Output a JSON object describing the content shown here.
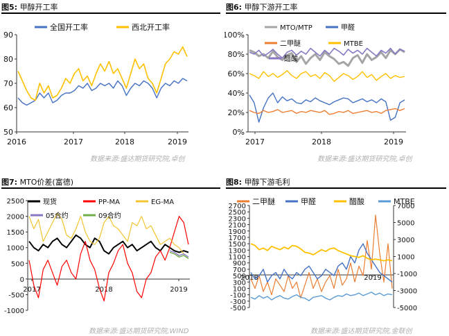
{
  "panels": {
    "p1": {
      "figno": "图5:",
      "title": "甲醇开工率",
      "source": "数据来源:盛达期货研究院,卓创"
    },
    "p2": {
      "figno": "图6:",
      "title": "甲醇下游开工率",
      "source": "数据来源:盛达期货研究院,卓创"
    },
    "p3": {
      "figno": "图7:",
      "title": "MTO价差(富德)",
      "source": "数据来源:盛达期货研究院,WIND"
    },
    "p4": {
      "figno": "图8:",
      "title": "甲醇下游毛利",
      "source": "数据来源:盛达期货研究院,金联创"
    }
  },
  "colors": {
    "blue": "#4472c4",
    "gold": "#ffc000",
    "gray": "#a5a5a5",
    "orange": "#ed7d31",
    "black": "#000000",
    "red": "#ff0000",
    "yellow": "#f4c430",
    "purple": "#8878c3",
    "green": "#70ad47",
    "ltblue": "#5b9bd5",
    "darkgold": "#c49a00"
  },
  "chart_data": [
    {
      "id": "p1",
      "type": "line",
      "x_ticks": [
        "2016",
        "2017",
        "2018",
        "2019"
      ],
      "ylim": [
        50,
        90
      ],
      "y_ticks": [
        "50",
        "60",
        "70",
        "80",
        "90"
      ],
      "legend_position": "top",
      "series": [
        {
          "name": "全国开工率",
          "color": "blue",
          "values": [
            64,
            62,
            61,
            62,
            63,
            66,
            64,
            66,
            62,
            63,
            65,
            66,
            66,
            67,
            69,
            68,
            70,
            67,
            68,
            70,
            69,
            70,
            68,
            71,
            69,
            65,
            68,
            70,
            69,
            71,
            70,
            68,
            64,
            68,
            70,
            69,
            71,
            70,
            72,
            71
          ]
        },
        {
          "name": "西北开工率",
          "color": "gold",
          "values": [
            75,
            71,
            67,
            64,
            63,
            70,
            66,
            69,
            64,
            65,
            68,
            72,
            70,
            74,
            76,
            71,
            73,
            69,
            74,
            78,
            75,
            79,
            74,
            76,
            72,
            68,
            74,
            80,
            76,
            78,
            72,
            70,
            66,
            72,
            78,
            80,
            83,
            82,
            85,
            81
          ]
        }
      ]
    },
    {
      "id": "p2",
      "type": "line",
      "x_ticks": [
        "2017",
        "2018",
        "2019"
      ],
      "ylim": [
        0,
        100
      ],
      "y_ticks": [
        "0%",
        "20%",
        "40%",
        "60%",
        "80%",
        "100%"
      ],
      "legend_position": "top",
      "series": [
        {
          "name": "MTO/MTP",
          "color": "gray",
          "values": [
            84,
            82,
            78,
            80,
            76,
            83,
            77,
            74,
            79,
            81,
            72,
            78,
            70,
            76,
            80,
            74,
            82,
            78,
            75,
            70,
            72,
            68,
            76,
            79,
            71,
            80,
            74,
            77,
            82,
            76,
            84,
            80,
            85,
            82
          ]
        },
        {
          "name": "甲醛",
          "color": "blue",
          "values": [
            38,
            30,
            10,
            25,
            35,
            40,
            30,
            36,
            32,
            34,
            30,
            29,
            33,
            31,
            35,
            32,
            30,
            28,
            31,
            33,
            35,
            34,
            30,
            32,
            34,
            31,
            33,
            30,
            34,
            31,
            12,
            15,
            30,
            33
          ]
        },
        {
          "name": "二甲醚",
          "color": "orange",
          "values": [
            22,
            20,
            19,
            22,
            20,
            21,
            23,
            20,
            21,
            22,
            19,
            21,
            20,
            22,
            21,
            20,
            22,
            18,
            19,
            21,
            20,
            22,
            19,
            20,
            21,
            22,
            20,
            21,
            19,
            22,
            23,
            24,
            22,
            24
          ]
        },
        {
          "name": "MTBE",
          "color": "gold",
          "values": [
            60,
            58,
            55,
            62,
            57,
            60,
            56,
            59,
            63,
            58,
            55,
            60,
            62,
            57,
            59,
            55,
            61,
            58,
            52,
            56,
            60,
            58,
            54,
            57,
            62,
            56,
            59,
            53,
            57,
            60,
            55,
            58,
            56,
            57
          ]
        },
        {
          "name": "醋酸",
          "color": "purple",
          "values": [
            82,
            80,
            84,
            78,
            81,
            85,
            80,
            76,
            82,
            84,
            79,
            83,
            80,
            86,
            82,
            78,
            84,
            80,
            86,
            83,
            79,
            85,
            81,
            84,
            80,
            86,
            82,
            78,
            84,
            81,
            86,
            80,
            85,
            83
          ]
        }
      ]
    },
    {
      "id": "p3",
      "type": "line",
      "x_ticks": [
        "2017",
        "2018",
        "2019"
      ],
      "ylim": [
        -1000,
        2500
      ],
      "y_ticks": [
        "-1000",
        "-500",
        "0",
        "500",
        "1000",
        "1500",
        "2000",
        "2500"
      ],
      "legend_position": "top",
      "series": [
        {
          "name": "现货",
          "color": "black",
          "values": [
            1200,
            1000,
            900,
            1100,
            1000,
            1200,
            1300,
            1100,
            1000,
            1200,
            1400,
            1300,
            1100,
            1000,
            1300,
            1200,
            900,
            800,
            1000,
            1100,
            1200,
            1000,
            1100,
            900,
            1000,
            1100,
            1200,
            1000,
            900,
            1100,
            1000,
            900,
            850,
            900,
            850
          ]
        },
        {
          "name": "PP-MA",
          "color": "red",
          "values": [
            600,
            -200,
            -600,
            300,
            600,
            200,
            -200,
            400,
            600,
            200,
            0,
            800,
            1200,
            600,
            300,
            -300,
            -700,
            200,
            500,
            900,
            1100,
            500,
            200,
            -400,
            -600,
            0,
            200,
            700,
            900,
            600,
            1000,
            1500,
            2000,
            1800,
            1100
          ]
        },
        {
          "name": "EG-MA",
          "color": "yellow",
          "values": [
            2000,
            1600,
            1900,
            1200,
            1500,
            1800,
            2100,
            1900,
            1400,
            1300,
            1600,
            2000,
            1500,
            1200,
            1100,
            1300,
            1800,
            2000,
            1700,
            1600,
            1400,
            1200,
            1800,
            1700,
            2000,
            1600,
            1700,
            1400,
            1100,
            1200,
            1300,
            1100,
            1000,
            800,
            700
          ]
        },
        {
          "name": "05合约",
          "color": "purple",
          "values": [
            null,
            null,
            null,
            null,
            null,
            null,
            null,
            null,
            null,
            null,
            null,
            null,
            null,
            null,
            null,
            null,
            null,
            null,
            null,
            null,
            null,
            null,
            null,
            null,
            null,
            null,
            null,
            null,
            null,
            null,
            900,
            850,
            750,
            800,
            700
          ]
        },
        {
          "name": "09合约",
          "color": "green",
          "values": [
            null,
            null,
            null,
            null,
            null,
            null,
            null,
            null,
            null,
            null,
            null,
            null,
            null,
            null,
            null,
            null,
            null,
            null,
            null,
            null,
            null,
            null,
            null,
            null,
            null,
            null,
            null,
            null,
            null,
            null,
            850,
            800,
            700,
            750,
            650
          ]
        }
      ]
    },
    {
      "id": "p4",
      "type": "line",
      "x_ticks": [
        "2018",
        "2019"
      ],
      "ylim_left": [
        -500,
        2700
      ],
      "y_ticks_left": [
        "-500",
        "-300",
        "-100",
        "100",
        "300",
        "500",
        "700",
        "900",
        "1100",
        "1300",
        "1500",
        "1700",
        "1900",
        "2100",
        "2300",
        "2500",
        "2700"
      ],
      "ylim_right": [
        -5000,
        7000
      ],
      "y_ticks_right": [
        "-5000",
        "-3000",
        "-1000",
        "1000",
        "3000",
        "5000",
        "7000"
      ],
      "legend_position": "top",
      "series": [
        {
          "name": "二甲醚",
          "color": "orange",
          "axis": "left",
          "values": [
            400,
            100,
            500,
            0,
            300,
            -100,
            400,
            200,
            0,
            500,
            100,
            300,
            -200,
            200,
            600,
            100,
            400,
            0,
            300,
            500,
            100,
            700,
            200,
            400,
            900,
            300,
            800,
            500,
            1600,
            700,
            2400,
            1200,
            300,
            1500,
            100
          ]
        },
        {
          "name": "甲醛",
          "color": "blue",
          "axis": "left",
          "values": [
            600,
            400,
            500,
            700,
            300,
            500,
            600,
            400,
            700,
            500,
            400,
            600,
            500,
            700,
            800,
            600,
            400,
            500,
            700,
            600,
            500,
            800,
            900,
            700,
            1100,
            900,
            1300,
            1500,
            1200,
            1000,
            800,
            600,
            500,
            400,
            300
          ]
        },
        {
          "name": "醋酸",
          "color": "gold",
          "axis": "right",
          "values": [
            2500,
            2300,
            1800,
            2000,
            1700,
            2200,
            2000,
            1800,
            2100,
            1900,
            2300,
            2200,
            1900,
            1500,
            1400,
            1200,
            1500,
            1800,
            1600,
            1900,
            2000,
            1700,
            1500,
            1300,
            1100,
            1000,
            900,
            1100,
            800,
            600,
            700,
            600,
            500,
            600,
            500
          ]
        },
        {
          "name": "MTBE",
          "color": "ltblue",
          "axis": "right",
          "values": [
            -3800,
            -4000,
            -3600,
            -3900,
            -3700,
            -4100,
            -3800,
            -3600,
            -3900,
            -4000,
            -3700,
            -3500,
            -3800,
            -3900,
            -4200,
            -3800,
            -3700,
            -3600,
            -3900,
            -4100,
            -3800,
            -3600,
            -3700,
            -3400,
            -3600,
            -3500,
            -3300,
            -3600,
            -3400,
            -3200,
            -3500,
            -3300,
            -3600,
            -3400,
            -3500
          ]
        }
      ]
    }
  ]
}
